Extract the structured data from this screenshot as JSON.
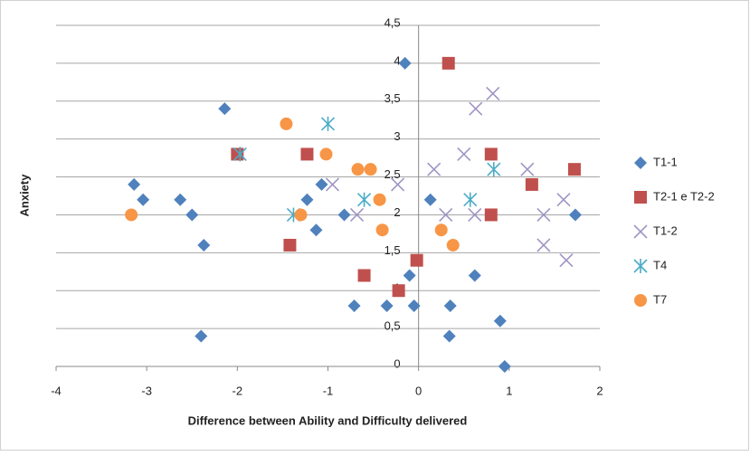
{
  "chart_data": {
    "type": "scatter",
    "x_label": "Difference between Ability and Difficulty delivered",
    "y_label": "Anxiety",
    "xlim": [
      -4,
      2
    ],
    "xticks": [
      -4,
      -3,
      -2,
      -1,
      0,
      1,
      2
    ],
    "ylim": [
      0,
      4.5
    ],
    "yticks": [
      0,
      {
        "value": 0.5,
        "label": "0,5"
      },
      1,
      {
        "value": 1.5,
        "label": "1,5"
      },
      2,
      {
        "value": 2.5,
        "label": "2,5"
      },
      3,
      {
        "value": 3.5,
        "label": "3,5"
      },
      4,
      {
        "value": 4.5,
        "label": "4,5"
      }
    ],
    "grid": true,
    "legend": "right",
    "series": [
      {
        "name": "T1-1",
        "color": "#4f81bd",
        "marker": "diamond",
        "x": [
          -2.14,
          -3.14,
          -3.04,
          -2.63,
          -2.5,
          -2.37,
          -2.4,
          -1.07,
          -1.23,
          -1.13,
          -0.82,
          -0.71,
          -0.35,
          -0.15,
          -0.1,
          -0.05,
          0.13,
          0.35,
          0.34,
          0.62,
          0.9,
          0.95,
          1.73
        ],
        "values": [
          3.4,
          2.4,
          2.2,
          2.2,
          2.0,
          1.6,
          0.4,
          2.4,
          2.2,
          1.8,
          2.0,
          0.8,
          0.8,
          4.0,
          1.2,
          0.8,
          2.2,
          0.8,
          0.4,
          1.2,
          0.6,
          0,
          2.0
        ]
      },
      {
        "name": "T2-1 e T2-2",
        "color": "#c0504d",
        "marker": "square",
        "x": [
          0.33,
          -2.0,
          -1.23,
          -1.42,
          -0.6,
          -0.02,
          -0.22,
          0.8,
          0.8,
          1.25,
          1.72
        ],
        "values": [
          4.0,
          2.8,
          2.8,
          1.6,
          1.2,
          1.4,
          1.0,
          2.8,
          2.0,
          2.4,
          2.6
        ]
      },
      {
        "name": "T1-2",
        "color": "#a094c4",
        "marker": "x",
        "x": [
          0.82,
          0.63,
          0.5,
          0.17,
          -0.23,
          -0.95,
          -0.68,
          0.3,
          0.62,
          1.2,
          1.38,
          1.38,
          1.6,
          1.63
        ],
        "values": [
          3.6,
          3.4,
          2.8,
          2.6,
          2.4,
          2.4,
          2.0,
          2.0,
          2.0,
          2.6,
          2.0,
          1.6,
          2.2,
          1.4
        ]
      },
      {
        "name": "T4",
        "color": "#4bacc6",
        "marker": "asterisk",
        "x": [
          -1.0,
          -1.97,
          -0.6,
          -1.38,
          0.57,
          0.83
        ],
        "values": [
          3.2,
          2.8,
          2.2,
          2.0,
          2.2,
          2.6
        ]
      },
      {
        "name": "T7",
        "color": "#f79646",
        "marker": "circle",
        "x": [
          -1.46,
          -1.02,
          -0.67,
          -0.53,
          -0.43,
          -0.4,
          -1.3,
          -3.17,
          0.25,
          0.38
        ],
        "values": [
          3.2,
          2.8,
          2.6,
          2.6,
          2.2,
          1.8,
          2.0,
          2.0,
          1.8,
          1.6
        ]
      }
    ]
  }
}
